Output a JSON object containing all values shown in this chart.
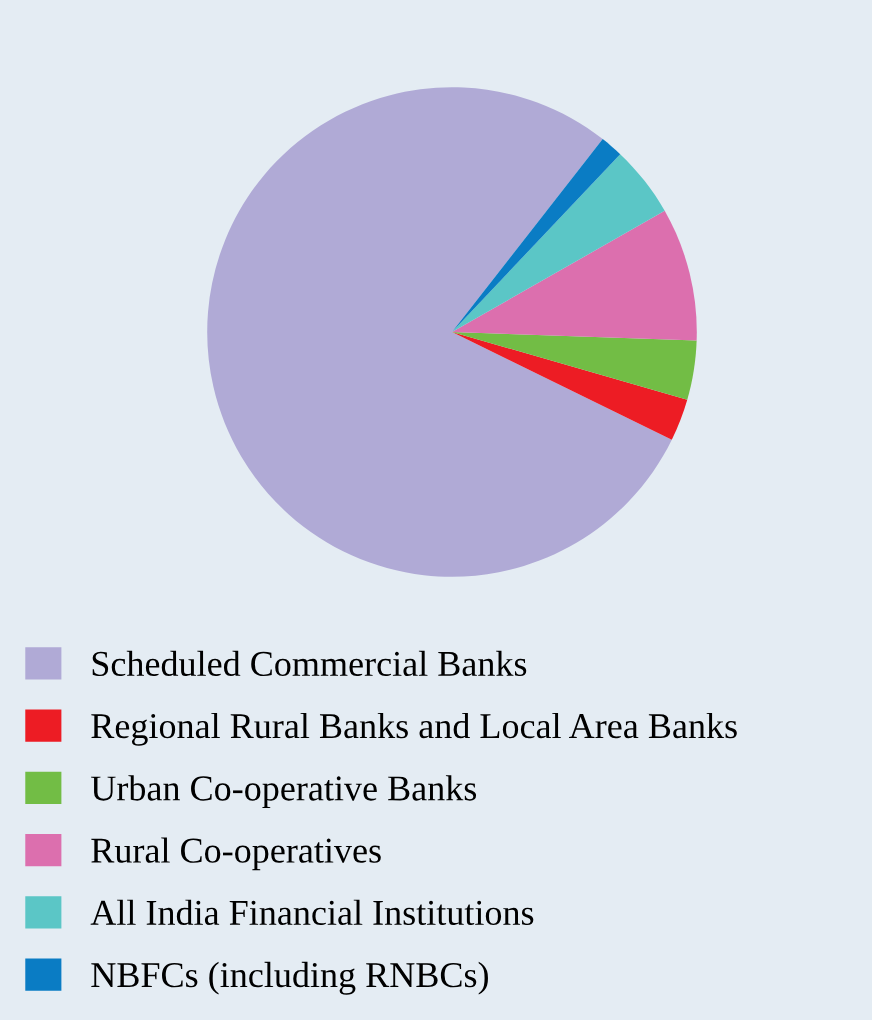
{
  "chart_data": {
    "type": "pie",
    "categories": [
      "Scheduled Commercial Banks",
      "Regional Rural Banks and Local Area Banks",
      "Urban Co-operative Banks",
      "Rural Co-operatives",
      "All India Financial Institutions",
      "NBFCs (including RNBCs)"
    ],
    "values": [
      78.3,
      2.8,
      3.9,
      8.8,
      4.7,
      1.5
    ],
    "colors": [
      "#b0aad6",
      "#ed1c24",
      "#72bd45",
      "#dc6fae",
      "#5bc6c6",
      "#0a7cc4"
    ],
    "legend": "bottom"
  }
}
